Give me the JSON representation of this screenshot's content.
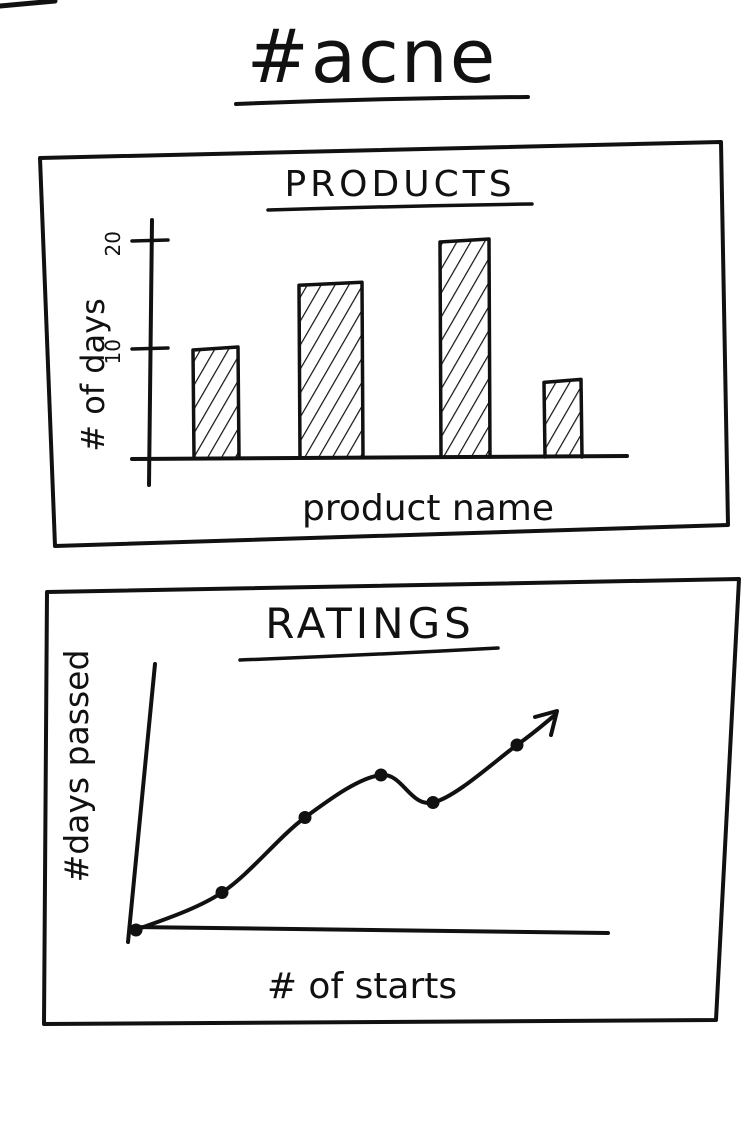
{
  "page": {
    "title": "#acne"
  },
  "colors": {
    "ink": "#111111",
    "paper": "#ffffff"
  },
  "chart_data": [
    {
      "type": "bar",
      "title": "PRODUCTS",
      "xlabel": "product name",
      "ylabel": "# of days",
      "y_ticks": [
        "10",
        "20"
      ],
      "ylim": [
        0,
        20
      ],
      "values": [
        10,
        16,
        20,
        7
      ],
      "grid": false
    },
    {
      "type": "line",
      "title": "RATINGS",
      "xlabel": "# of starts",
      "ylabel": "#days passed",
      "values": [
        0,
        1.5,
        4.5,
        6.2,
        5.1,
        7.4,
        8.6
      ],
      "grid": false
    }
  ]
}
